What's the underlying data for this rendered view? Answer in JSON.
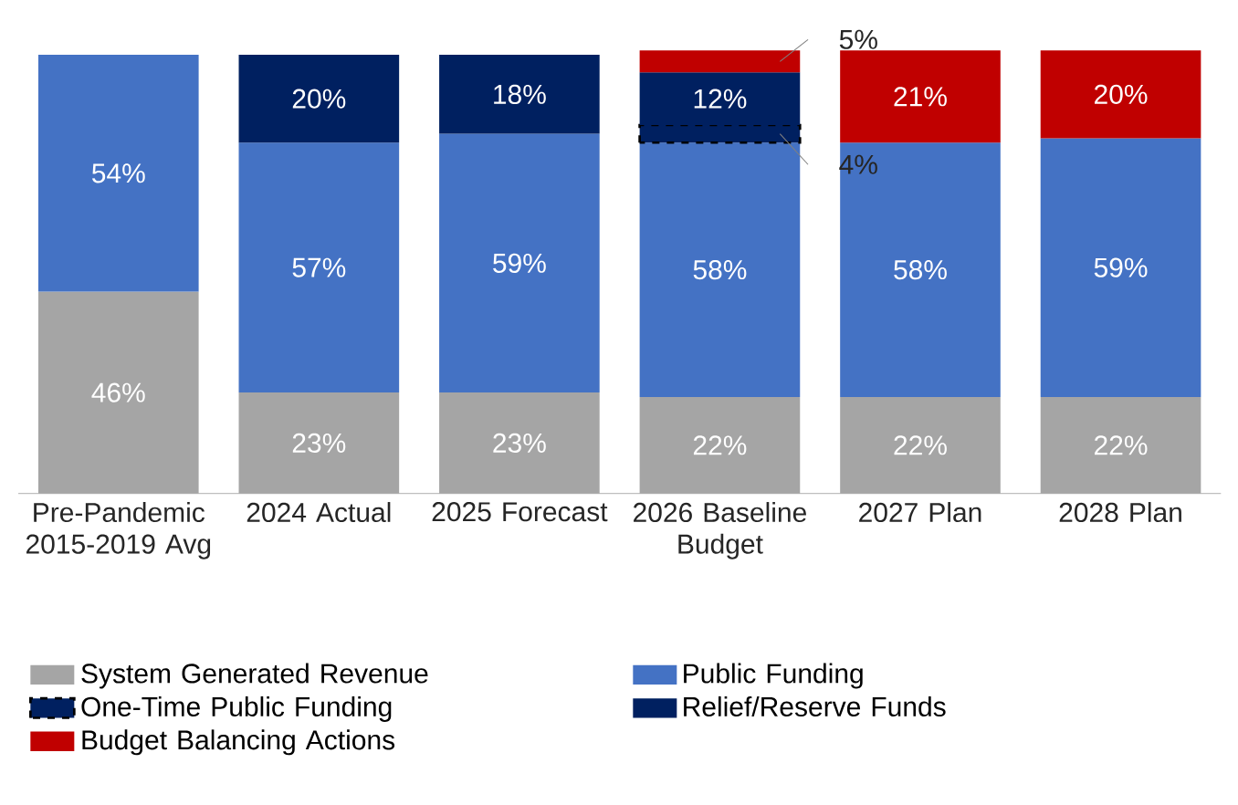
{
  "chart_data": {
    "type": "bar",
    "stacked": true,
    "legend": "bottom",
    "categories": [
      "Pre-Pandemic 2015-2019 Avg",
      "2024 Actual",
      "2025 Forecast",
      "2026 Baseline Budget",
      "2027 Plan",
      "2028  Plan"
    ],
    "series": [
      {
        "name": "System Generated Revenue",
        "color": "#a5a5a5",
        "values": [
          46,
          23,
          23,
          22,
          22,
          22
        ],
        "value_labels": [
          "46%",
          "23%",
          "23%",
          "22%",
          "22%",
          "22%"
        ]
      },
      {
        "name": "Public Funding",
        "color": "#4472c4",
        "values": [
          54,
          57,
          59,
          58,
          58,
          59
        ],
        "value_labels": [
          "54%",
          "57%",
          "59%",
          "58%",
          "58%",
          "59%"
        ]
      },
      {
        "name": "One-Time Public Funding",
        "color": "#002060",
        "line_style": "dashed",
        "values": [
          null,
          null,
          null,
          4,
          null,
          null
        ],
        "value_labels": [
          null,
          null,
          null,
          "4%",
          null,
          null
        ]
      },
      {
        "name": "Relief/Reserve Funds",
        "color": "#002060",
        "values": [
          null,
          20,
          18,
          12,
          null,
          null
        ],
        "value_labels": [
          null,
          "20%",
          "18%",
          "12%",
          null,
          null
        ]
      },
      {
        "name": "Budget Balancing Actions",
        "color": "#c00000",
        "values": [
          null,
          null,
          null,
          5,
          21,
          20
        ],
        "value_labels": [
          null,
          null,
          null,
          "5%",
          "21%",
          "20%"
        ]
      }
    ]
  }
}
